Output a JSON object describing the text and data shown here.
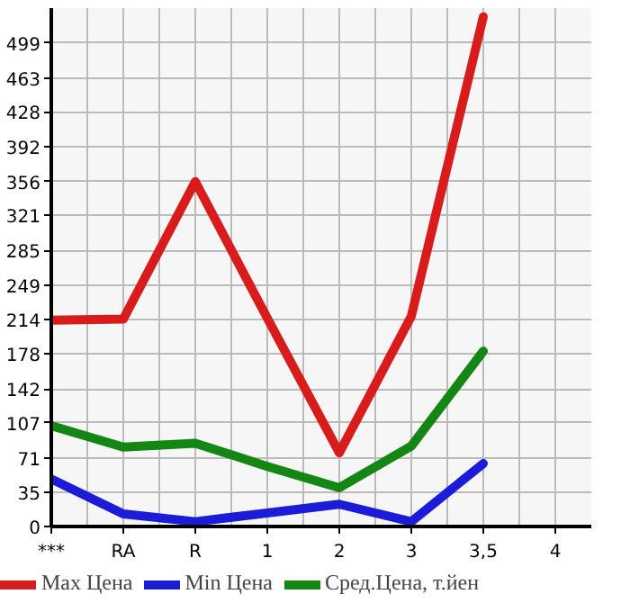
{
  "chart_data": {
    "type": "line",
    "categories": [
      "***",
      "RA",
      "R",
      "1",
      "2",
      "3",
      "3,5",
      "4"
    ],
    "series": [
      {
        "name": "Max Цена",
        "color": "#d81c1c",
        "values": [
          213,
          214,
          356,
          215,
          76,
          217,
          526,
          null
        ]
      },
      {
        "name": "Min Цена",
        "color": "#1c1cd8",
        "values": [
          49,
          13,
          5,
          14,
          23,
          5,
          65,
          null
        ]
      },
      {
        "name": "Сред.Цена, т.йен",
        "color": "#138613",
        "values": [
          104,
          82,
          86,
          62,
          40,
          83,
          181,
          null
        ]
      }
    ],
    "ylim": [
      0,
      535
    ],
    "yticks": [
      0,
      35,
      71,
      107,
      142,
      178,
      214,
      249,
      285,
      321,
      356,
      392,
      428,
      463,
      499
    ],
    "grid": true,
    "legend": "bottom",
    "marker": "none",
    "line_style": "solid"
  }
}
